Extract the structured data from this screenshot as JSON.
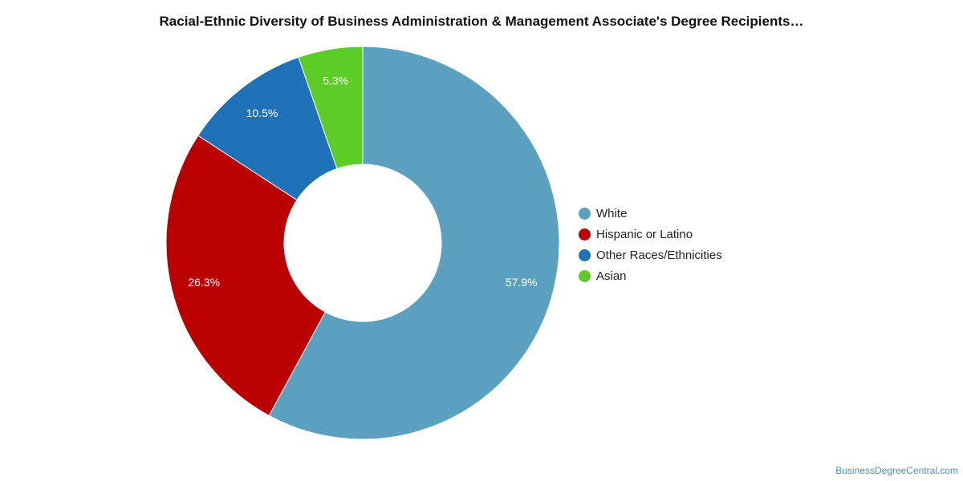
{
  "title": "Racial-Ethnic Diversity of Business Administration & Management Associate's Degree Recipients…",
  "credit": "BusinessDegreeCentral.com",
  "chart_data": {
    "type": "pie",
    "variant": "donut",
    "start_angle_deg": 0,
    "direction": "clockwise",
    "legend_position": "right",
    "slices": [
      {
        "name": "White",
        "value": 57.9,
        "label": "57.9%",
        "color": "#5ba1bf"
      },
      {
        "name": "Hispanic or Latino",
        "value": 26.3,
        "label": "26.3%",
        "color": "#ba0000"
      },
      {
        "name": "Other Races/Ethnicities",
        "value": 10.5,
        "label": "10.5%",
        "color": "#1e72b8"
      },
      {
        "name": "Asian",
        "value": 5.3,
        "label": "5.3%",
        "color": "#5ecc27"
      }
    ]
  }
}
